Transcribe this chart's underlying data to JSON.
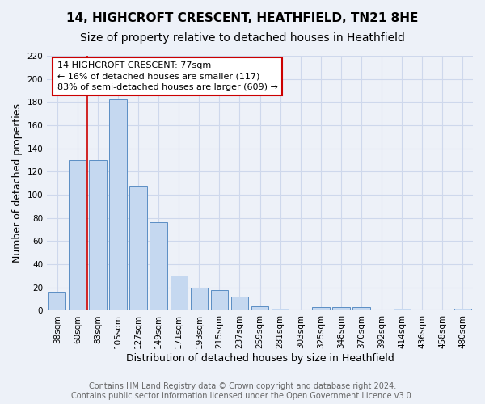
{
  "title": "14, HIGHCROFT CRESCENT, HEATHFIELD, TN21 8HE",
  "subtitle": "Size of property relative to detached houses in Heathfield",
  "xlabel": "Distribution of detached houses by size in Heathfield",
  "ylabel": "Number of detached properties",
  "bar_values": [
    16,
    130,
    130,
    182,
    108,
    76,
    30,
    20,
    18,
    12,
    4,
    2,
    0,
    3,
    3,
    3,
    0,
    2,
    0,
    0,
    2
  ],
  "bar_labels": [
    "38sqm",
    "60sqm",
    "83sqm",
    "105sqm",
    "127sqm",
    "149sqm",
    "171sqm",
    "193sqm",
    "215sqm",
    "237sqm",
    "259sqm",
    "281sqm",
    "303sqm",
    "325sqm",
    "348sqm",
    "370sqm",
    "392sqm",
    "414sqm",
    "436sqm",
    "458sqm",
    "480sqm"
  ],
  "bar_color": "#c5d8f0",
  "bar_edge_color": "#5b8ec4",
  "grid_color": "#ced8ec",
  "background_color": "#edf1f8",
  "annotation_text": "14 HIGHCROFT CRESCENT: 77sqm\n← 16% of detached houses are smaller (117)\n83% of semi-detached houses are larger (609) →",
  "annotation_box_color": "white",
  "annotation_box_edge": "#cc0000",
  "redline_color": "#cc0000",
  "ylim": [
    0,
    220
  ],
  "yticks": [
    0,
    20,
    40,
    60,
    80,
    100,
    120,
    140,
    160,
    180,
    200,
    220
  ],
  "footer": "Contains HM Land Registry data © Crown copyright and database right 2024.\nContains public sector information licensed under the Open Government Licence v3.0.",
  "title_fontsize": 11,
  "subtitle_fontsize": 10,
  "xlabel_fontsize": 9,
  "ylabel_fontsize": 9,
  "tick_fontsize": 7.5,
  "annot_fontsize": 8,
  "footer_fontsize": 7
}
